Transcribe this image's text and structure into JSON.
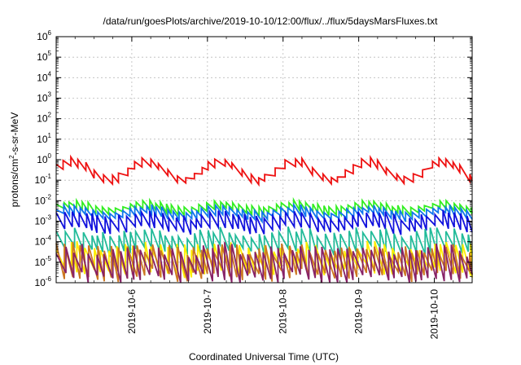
{
  "chart_data": {
    "type": "line",
    "title": "/data/run/goesPlots/archive/2019-10-10/12:00/flux/../flux/5daysMarsFluxes.txt",
    "xlabel": "Coordinated Universal Time (UTC)",
    "ylabel": {
      "base": "protons/cm",
      "sup": "2",
      "rest": "-s-sr-MeV"
    },
    "x_ticks": [
      "2019-10-6",
      "2019-10-7",
      "2019-10-8",
      "2019-10-9",
      "2019-10-10"
    ],
    "xlim": [
      "2019-10-05T00:00",
      "2019-10-10T12:00"
    ],
    "y_ticks": [
      {
        "base": "10",
        "exp": "-6"
      },
      {
        "base": "10",
        "exp": "-5"
      },
      {
        "base": "10",
        "exp": "-4"
      },
      {
        "base": "10",
        "exp": "-3"
      },
      {
        "base": "10",
        "exp": "-2"
      },
      {
        "base": "10",
        "exp": "-1"
      },
      {
        "base": "10",
        "exp": "0"
      },
      {
        "base": "10",
        "exp": "1"
      },
      {
        "base": "10",
        "exp": "2"
      },
      {
        "base": "10",
        "exp": "3"
      },
      {
        "base": "10",
        "exp": "4"
      },
      {
        "base": "10",
        "exp": "5"
      },
      {
        "base": "10",
        "exp": "6"
      }
    ],
    "ylim": [
      1e-06,
      1000000.0
    ],
    "yscale": "log",
    "grid": true,
    "series": [
      {
        "color": "#ee1111",
        "base_log": -0.55,
        "sawtooth_amplitude": 0.35,
        "sawtooth_period_days": 0.11,
        "modulation_amplitude": 0.45,
        "modulation_period_days": 0.98,
        "modulation_phase_days": 0.95,
        "noise_seed": 3
      },
      {
        "color": "#33ee22",
        "base_log": -2.35,
        "sawtooth_amplitude": 0.35,
        "sawtooth_period_days": 0.085,
        "modulation_amplitude": 0.15,
        "modulation_period_days": 0.98,
        "modulation_phase_days": 0.95,
        "noise_seed": 11
      },
      {
        "color": "#1177ee",
        "base_log": -2.6,
        "sawtooth_amplitude": 0.4,
        "sawtooth_period_days": 0.08,
        "modulation_amplitude": 0.15,
        "modulation_period_days": 0.98,
        "modulation_phase_days": 0.95,
        "noise_seed": 17
      },
      {
        "color": "#1111dd",
        "base_log": -3.05,
        "sawtooth_amplitude": 0.7,
        "sawtooth_period_days": 0.09,
        "modulation_amplitude": 0.15,
        "modulation_period_days": 0.98,
        "modulation_phase_days": 0.95,
        "noise_seed": 23
      },
      {
        "color": "#22bb99",
        "base_log": -4.0,
        "sawtooth_amplitude": 0.9,
        "sawtooth_period_days": 0.095,
        "modulation_amplitude": 0.15,
        "modulation_period_days": 0.98,
        "modulation_phase_days": 0.95,
        "noise_seed": 29
      },
      {
        "color": "#ffee00",
        "base_log": -4.85,
        "sawtooth_amplitude": 1.2,
        "sawtooth_period_days": 0.1,
        "modulation_amplitude": 0.1,
        "modulation_period_days": 0.98,
        "modulation_phase_days": 0.95,
        "noise_seed": 31
      },
      {
        "color": "#cc7722",
        "base_log": -5.0,
        "sawtooth_amplitude": 1.3,
        "sawtooth_period_days": 0.1,
        "modulation_amplitude": 0.1,
        "modulation_period_days": 0.98,
        "modulation_phase_days": 0.95,
        "noise_seed": 37
      },
      {
        "color": "#882266",
        "base_log": -5.1,
        "sawtooth_amplitude": 1.4,
        "sawtooth_period_days": 0.1,
        "modulation_amplitude": 0.1,
        "modulation_period_days": 0.98,
        "modulation_phase_days": 0.95,
        "noise_seed": 41
      }
    ]
  }
}
